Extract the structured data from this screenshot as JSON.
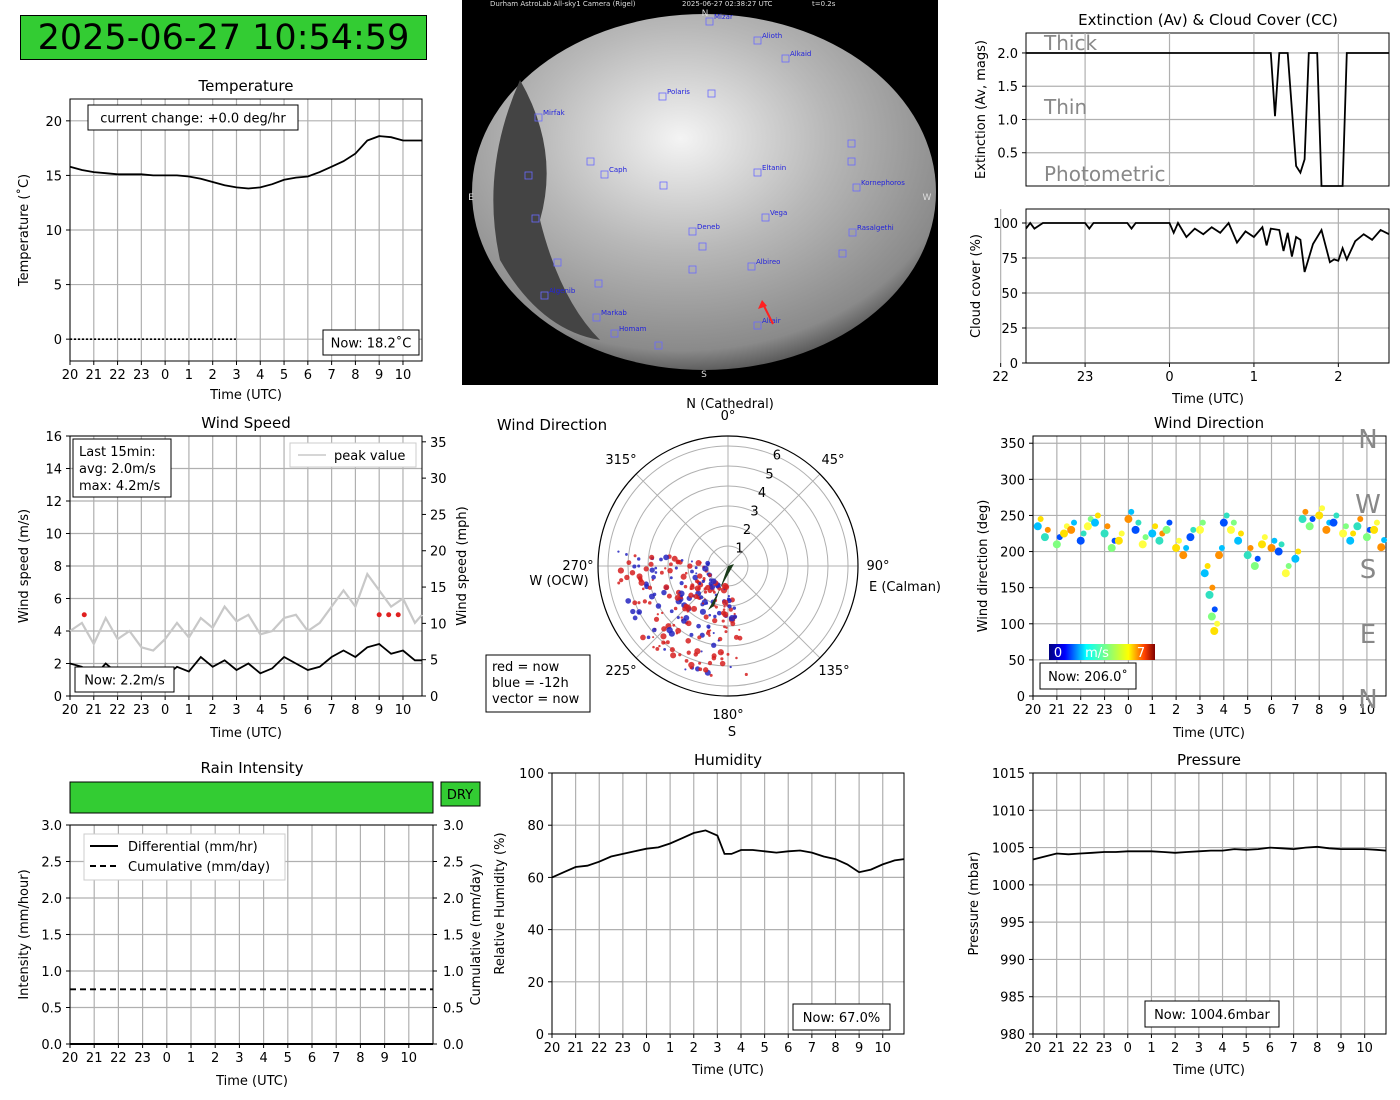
{
  "timestamp": "2025-06-27 10:54:59",
  "colors": {
    "status_green": "#33cc33",
    "grid": "#b0b0b0",
    "red": "#d62728",
    "blue": "#1f1fcc"
  },
  "temperature": {
    "title": "Temperature",
    "ylabel": "Temperature (˚C)",
    "xlabel": "Time (UTC)",
    "change_note": "current change: +0.0 deg/hr",
    "now": "Now: 18.2˚C",
    "xticks": [
      "20",
      "21",
      "22",
      "23",
      "0",
      "1",
      "2",
      "3",
      "4",
      "5",
      "6",
      "7",
      "8",
      "9",
      "10"
    ],
    "yticks": [
      "0",
      "5",
      "10",
      "15",
      "20"
    ]
  },
  "sky_camera": {
    "header": "Durham AstroLab All-sky1 Camera (Rigel)",
    "time": "2025-06-27 02:38:27 UTC",
    "exposure": "t=0.2s",
    "compass": {
      "n": "N",
      "s": "S",
      "e": "E",
      "w": "W"
    },
    "stars": [
      "Alioth",
      "Alkaid",
      "Polaris",
      "Mirfak",
      "Caph",
      "Eltanin",
      "Kornephoros",
      "Vega",
      "Rasalgethi",
      "Deneb",
      "Albireo",
      "Algenib",
      "Markab",
      "Homam",
      "Altair",
      "Mizar"
    ]
  },
  "extinction": {
    "title": "Extinction (Av) & Cloud Cover (CC)",
    "ylabel": "Extinction (Av, mags)",
    "yticks": [
      "0.5",
      "1.0",
      "1.5",
      "2.0"
    ],
    "bands": {
      "thick": "Thick",
      "thin": "Thin",
      "photometric": "Photometric"
    }
  },
  "cloud": {
    "ylabel": "Cloud cover (%)",
    "xlabel": "Time (UTC)",
    "xticks": [
      "22",
      "23",
      "0",
      "1",
      "2"
    ],
    "yticks": [
      "0",
      "25",
      "50",
      "75",
      "100"
    ]
  },
  "wind_speed": {
    "title": "Wind Speed",
    "ylabel": "Wind speed (m/s)",
    "ylabel_right": "Wind speed (mph)",
    "xlabel": "Time (UTC)",
    "legend": "peak value",
    "stats": [
      "Last 15min:",
      "avg: 2.0m/s",
      "max: 4.2m/s"
    ],
    "now": "Now: 2.2m/s",
    "xticks": [
      "20",
      "21",
      "22",
      "23",
      "0",
      "1",
      "2",
      "3",
      "4",
      "5",
      "6",
      "7",
      "8",
      "9",
      "10"
    ],
    "yticks": [
      "0",
      "2",
      "4",
      "6",
      "8",
      "10",
      "12",
      "14",
      "16"
    ],
    "yticks_right": [
      "0",
      "5",
      "10",
      "15",
      "20",
      "25",
      "30",
      "35"
    ]
  },
  "wind_polar": {
    "title": "Wind Direction",
    "north": "N (Cathedral)",
    "east": "E (Calman)",
    "west": "W (OCW)",
    "south": "S",
    "angles": [
      "0°",
      "45°",
      "90°",
      "135°",
      "180°",
      "225°",
      "270°",
      "315°"
    ],
    "rings": [
      "1",
      "2",
      "3",
      "4",
      "5",
      "6"
    ],
    "legend": [
      "red = now",
      "blue = -12h",
      "vector = now"
    ]
  },
  "wind_dir": {
    "title": "Wind Direction",
    "ylabel": "Wind direction (deg)",
    "xlabel": "Time (UTC)",
    "now": "Now: 206.0˚",
    "compass": [
      "N",
      "W",
      "S",
      "E",
      "N"
    ],
    "colorbar": {
      "min": "0",
      "unit": "m/s",
      "max": "7"
    },
    "xticks": [
      "20",
      "21",
      "22",
      "23",
      "0",
      "1",
      "2",
      "3",
      "4",
      "5",
      "6",
      "7",
      "8",
      "9",
      "10"
    ],
    "yticks": [
      "0",
      "50",
      "100",
      "150",
      "200",
      "250",
      "300",
      "350"
    ]
  },
  "rain": {
    "title": "Rain Intensity",
    "status": "DRY",
    "ylabel": "Intensity (mm/hour)",
    "ylabel_right": "Cumulative (mm/day)",
    "xlabel": "Time (UTC)",
    "legend": [
      "Differential (mm/hr)",
      "Cumulative (mm/day)"
    ],
    "xticks": [
      "20",
      "21",
      "22",
      "23",
      "0",
      "1",
      "2",
      "3",
      "4",
      "5",
      "6",
      "7",
      "8",
      "9",
      "10"
    ],
    "yticks": [
      "0.0",
      "0.5",
      "1.0",
      "1.5",
      "2.0",
      "2.5",
      "3.0"
    ]
  },
  "humidity": {
    "title": "Humidity",
    "ylabel": "Relative Humidity (%)",
    "xlabel": "Time (UTC)",
    "now": "Now: 67.0%",
    "xticks": [
      "20",
      "21",
      "22",
      "23",
      "0",
      "1",
      "2",
      "3",
      "4",
      "5",
      "6",
      "7",
      "8",
      "9",
      "10"
    ],
    "yticks": [
      "0",
      "20",
      "40",
      "60",
      "80",
      "100"
    ]
  },
  "pressure": {
    "title": "Pressure",
    "ylabel": "Pressure (mbar)",
    "xlabel": "Time (UTC)",
    "now": "Now: 1004.6mbar",
    "xticks": [
      "20",
      "21",
      "22",
      "23",
      "0",
      "1",
      "2",
      "3",
      "4",
      "5",
      "6",
      "7",
      "8",
      "9",
      "10"
    ],
    "yticks": [
      "980",
      "985",
      "990",
      "995",
      "1000",
      "1005",
      "1010",
      "1015"
    ]
  },
  "chart_data": [
    {
      "id": "temperature",
      "type": "line",
      "xlim": [
        20,
        34.8
      ],
      "ylim": [
        -2,
        22
      ],
      "series": [
        {
          "x": [
            20,
            20.5,
            21,
            21.5,
            22,
            22.5,
            23,
            23.5,
            24,
            24.5,
            25,
            25.5,
            26,
            26.5,
            27,
            27.5,
            28,
            28.5,
            29,
            29.5,
            30,
            30.5,
            31,
            31.5,
            32,
            32.5,
            33,
            33.5,
            34,
            34.5,
            34.8
          ],
          "values": [
            15.8,
            15.5,
            15.3,
            15.2,
            15.1,
            15.1,
            15.1,
            15.0,
            15.0,
            15.0,
            14.9,
            14.7,
            14.4,
            14.1,
            13.9,
            13.8,
            13.9,
            14.2,
            14.6,
            14.8,
            14.9,
            15.3,
            15.8,
            16.3,
            17.0,
            18.2,
            18.6,
            18.5,
            18.2,
            18.2,
            18.2
          ]
        }
      ],
      "reference_line": 0
    },
    {
      "id": "extinction",
      "type": "line",
      "xlim": [
        22.3,
        26.6
      ],
      "ylim": [
        0,
        2.3
      ],
      "series": [
        {
          "x": [
            22.3,
            23,
            24,
            25,
            25.15,
            25.2,
            25.25,
            25.3,
            25.35,
            25.4,
            25.5,
            25.55,
            25.6,
            25.65,
            25.7,
            25.75,
            25.8,
            25.85,
            25.9,
            25.95,
            26.0,
            26.05,
            26.1,
            26.3,
            26.5,
            26.6
          ],
          "values": [
            2,
            2,
            2,
            2,
            2,
            2,
            1.05,
            2,
            2,
            2,
            0.3,
            0.2,
            0.4,
            2,
            2,
            2,
            0,
            0,
            0,
            0,
            0,
            0,
            2,
            2,
            2,
            2
          ]
        }
      ]
    },
    {
      "id": "cloud_cover",
      "type": "line",
      "xlim": [
        22.3,
        26.6
      ],
      "ylim": [
        0,
        110
      ],
      "series": [
        {
          "x": [
            22.3,
            22.35,
            22.4,
            22.5,
            23,
            23.05,
            23.1,
            23.5,
            23.55,
            23.6,
            24,
            24.05,
            24.1,
            24.2,
            24.3,
            24.4,
            24.5,
            24.6,
            24.7,
            24.8,
            24.9,
            25.0,
            25.1,
            25.15,
            25.2,
            25.3,
            25.35,
            25.4,
            25.45,
            25.5,
            25.55,
            25.6,
            25.7,
            25.8,
            25.9,
            25.95,
            26.0,
            26.05,
            26.1,
            26.2,
            26.3,
            26.4,
            26.5,
            26.6
          ],
          "values": [
            96,
            100,
            96,
            100,
            100,
            96,
            100,
            100,
            96,
            100,
            100,
            93,
            100,
            90,
            96,
            92,
            97,
            93,
            100,
            86,
            94,
            90,
            97,
            84,
            96,
            95,
            80,
            93,
            76,
            90,
            88,
            65,
            85,
            95,
            72,
            74,
            73,
            82,
            74,
            87,
            92,
            88,
            95,
            92
          ]
        }
      ]
    },
    {
      "id": "wind_speed",
      "type": "line",
      "xlim": [
        20,
        34.8
      ],
      "ylim": [
        0,
        16
      ],
      "series": [
        {
          "name": "peak value",
          "x": [
            20,
            20.5,
            21,
            21.5,
            22,
            22.5,
            23,
            23.5,
            24,
            24.5,
            25,
            25.5,
            26,
            26.5,
            27,
            27.5,
            28,
            28.5,
            29,
            29.5,
            30,
            30.5,
            31,
            31.5,
            32,
            32.5,
            33,
            33.5,
            34,
            34.5,
            34.8
          ],
          "values": [
            4.0,
            4.5,
            3.2,
            4.8,
            3.5,
            4.0,
            3.0,
            2.8,
            3.5,
            4.5,
            3.6,
            4.8,
            4.2,
            5.5,
            4.6,
            5.0,
            3.8,
            4.0,
            4.8,
            5.0,
            4.0,
            4.5,
            5.5,
            6.5,
            5.5,
            7.5,
            6.5,
            5.5,
            6.0,
            4.5,
            5.0
          ]
        },
        {
          "name": "",
          "x": [
            20,
            20.5,
            21,
            21.5,
            22,
            22.5,
            23,
            23.5,
            24,
            24.5,
            25,
            25.5,
            26,
            26.5,
            27,
            27.5,
            28,
            28.5,
            29,
            29.5,
            30,
            30.5,
            31,
            31.5,
            32,
            32.5,
            33,
            33.5,
            34,
            34.5,
            34.8
          ],
          "values": [
            2.0,
            1.8,
            1.2,
            2.0,
            1.4,
            1.6,
            1.0,
            1.0,
            1.2,
            1.8,
            1.5,
            2.4,
            1.8,
            2.2,
            1.6,
            2.0,
            1.4,
            1.7,
            2.4,
            2.0,
            1.6,
            1.8,
            2.4,
            2.8,
            2.4,
            3.0,
            3.2,
            2.6,
            2.8,
            2.2,
            2.2
          ]
        }
      ]
    },
    {
      "id": "wind_direction",
      "type": "scatter",
      "xlim": [
        20,
        34.8
      ],
      "ylim": [
        0,
        360
      ],
      "x": [
        20.2,
        20.5,
        21,
        21.3,
        21.6,
        22,
        22.3,
        22.6,
        23,
        23.3,
        23.6,
        24,
        24.3,
        24.6,
        25,
        25.3,
        25.6,
        26,
        26.3,
        26.6,
        27,
        27.2,
        27.4,
        27.5,
        27.6,
        27.8,
        28,
        28.3,
        28.6,
        29,
        29.3,
        29.6,
        30,
        30.3,
        30.6,
        31,
        31.3,
        31.6,
        32,
        32.3,
        32.6,
        33,
        33.3,
        33.6,
        34,
        34.3,
        34.6
      ],
      "values": [
        235,
        220,
        210,
        225,
        230,
        215,
        235,
        240,
        225,
        205,
        215,
        245,
        230,
        210,
        225,
        215,
        230,
        205,
        195,
        220,
        230,
        170,
        140,
        110,
        90,
        195,
        240,
        230,
        215,
        195,
        180,
        210,
        205,
        200,
        170,
        190,
        245,
        235,
        250,
        230,
        240,
        225,
        215,
        235,
        220,
        230,
        206
      ]
    },
    {
      "id": "rain",
      "type": "line",
      "xlim": [
        20,
        35
      ],
      "ylim": [
        0,
        3.0
      ],
      "series": [
        {
          "name": "Differential (mm/hr)",
          "x": [
            20,
            35
          ],
          "values": [
            0,
            0
          ]
        },
        {
          "name": "Cumulative (mm/day)",
          "x": [
            20,
            35
          ],
          "values": [
            0.75,
            0.75
          ]
        }
      ]
    },
    {
      "id": "humidity",
      "type": "line",
      "xlim": [
        20,
        34.9
      ],
      "ylim": [
        0,
        100
      ],
      "series": [
        {
          "x": [
            20,
            20.5,
            21,
            21.5,
            22,
            22.5,
            23,
            23.5,
            24,
            24.5,
            25,
            25.5,
            26,
            26.5,
            27,
            27.3,
            27.6,
            28,
            28.5,
            29,
            29.5,
            30,
            30.5,
            31,
            31.5,
            32,
            32.5,
            33,
            33.5,
            34,
            34.5,
            34.9
          ],
          "values": [
            60,
            62,
            64,
            64.5,
            66,
            68,
            69,
            70,
            71,
            71.5,
            73,
            75,
            77,
            78,
            76,
            69,
            69,
            70.5,
            70.5,
            70,
            69.5,
            70,
            70.3,
            69.5,
            68,
            67,
            65,
            62,
            63,
            65,
            66.5,
            67
          ]
        }
      ]
    },
    {
      "id": "pressure",
      "type": "line",
      "xlim": [
        20,
        34.9
      ],
      "ylim": [
        980,
        1015
      ],
      "series": [
        {
          "x": [
            20,
            20.5,
            21,
            21.5,
            22,
            22.5,
            23,
            23.5,
            24,
            24.5,
            25,
            25.5,
            26,
            26.5,
            27,
            27.5,
            28,
            28.5,
            29,
            29.5,
            30,
            30.5,
            31,
            31.5,
            32,
            32.5,
            33,
            33.5,
            34,
            34.5,
            34.9
          ],
          "values": [
            1003.4,
            1003.8,
            1004.2,
            1004.1,
            1004.2,
            1004.3,
            1004.4,
            1004.4,
            1004.5,
            1004.5,
            1004.5,
            1004.4,
            1004.3,
            1004.4,
            1004.5,
            1004.6,
            1004.6,
            1004.8,
            1004.7,
            1004.8,
            1005.0,
            1004.9,
            1004.8,
            1005.0,
            1005.1,
            1004.9,
            1004.8,
            1004.8,
            1004.8,
            1004.7,
            1004.6
          ]
        }
      ]
    }
  ]
}
